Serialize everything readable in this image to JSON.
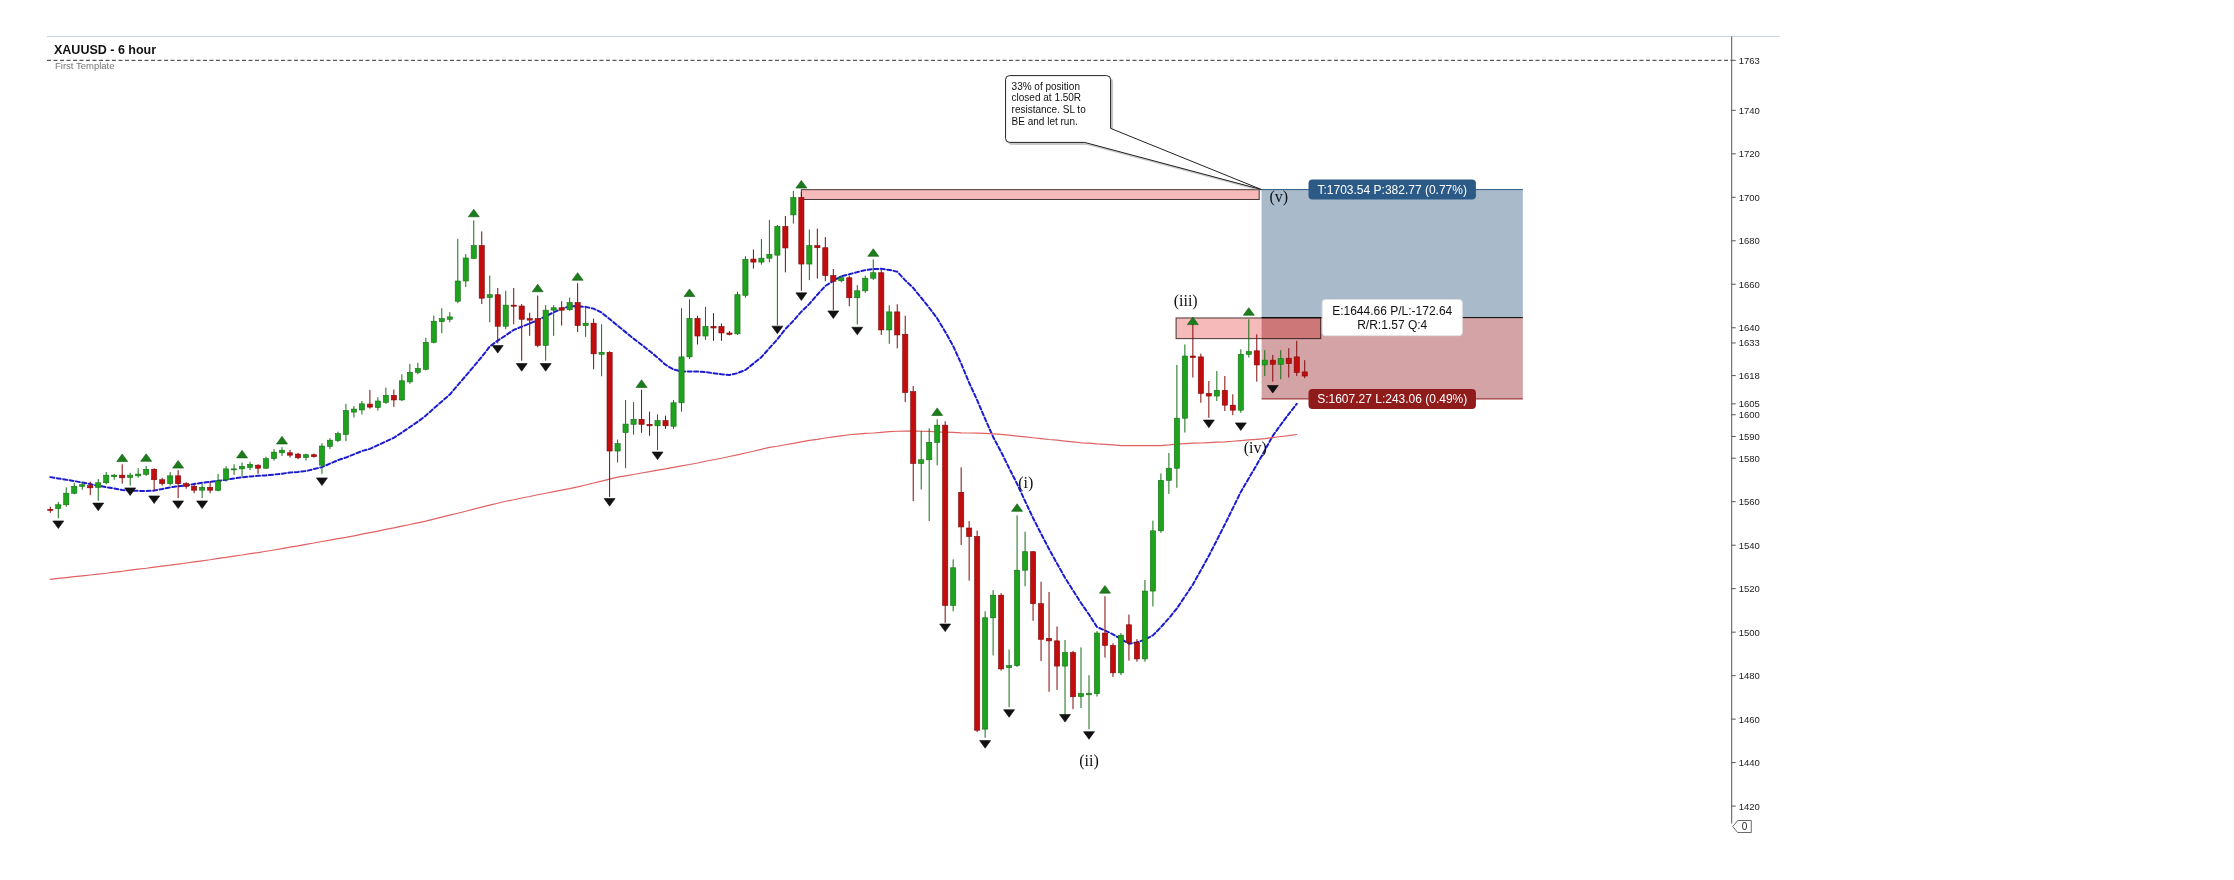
{
  "chart_data": {
    "type": "candlestick",
    "title": "XAUUSD - 6 hour",
    "subtitle": "First Template",
    "categories": [
      null,
      null,
      null,
      null,
      null,
      null,
      null,
      null,
      null,
      null,
      null,
      null,
      null,
      null,
      null,
      null,
      null,
      null,
      null,
      null,
      null,
      null,
      null,
      null,
      null,
      null,
      null,
      null,
      null,
      null,
      null,
      null,
      null,
      null,
      null,
      null,
      null,
      null,
      null,
      null,
      null,
      null,
      null,
      null,
      null,
      null,
      null,
      null,
      null,
      null,
      null,
      null,
      null,
      null,
      null,
      null,
      null,
      null,
      null,
      null,
      null,
      null,
      null,
      null,
      null,
      null,
      null,
      null,
      null,
      null,
      null,
      null,
      null,
      null,
      null,
      null,
      null,
      null,
      null,
      null,
      null,
      null,
      null,
      null,
      null,
      null,
      null,
      null,
      null,
      null,
      null,
      null,
      null,
      null,
      null,
      null,
      null,
      null,
      null,
      null,
      null,
      null,
      null,
      null,
      null,
      null,
      null,
      null,
      null,
      null,
      null,
      null,
      null,
      null,
      null,
      null,
      null,
      null,
      null,
      null,
      null,
      null,
      null,
      null,
      null,
      null,
      null,
      null,
      null,
      null,
      null,
      null,
      null,
      null,
      null,
      null,
      null,
      null,
      null,
      null,
      null,
      null,
      null,
      null,
      null,
      null,
      null,
      null,
      null,
      null,
      null,
      null,
      null,
      null,
      null,
      null,
      null,
      null,
      null,
      null,
      null,
      null,
      null,
      null,
      null,
      null,
      null,
      null,
      null,
      null,
      null,
      null,
      null,
      null,
      null,
      null,
      null,
      null,
      null,
      null,
      null,
      null,
      null,
      null,
      null,
      null,
      null,
      null,
      null,
      null,
      null,
      null,
      null,
      null,
      null,
      null,
      null,
      null,
      null,
      null,
      null,
      null,
      null,
      null,
      null,
      null,
      null,
      null,
      null,
      null,
      null
    ],
    "ohlc": [
      [
        1556.5,
        1557.7,
        1554.9,
        1556.0
      ],
      [
        1556.9,
        1559.9,
        1552.4,
        1558.6
      ],
      [
        1558.6,
        1566.6,
        1557.7,
        1563.9
      ],
      [
        1563.9,
        1568.7,
        1563.4,
        1567.1
      ],
      [
        1567.1,
        1568.7,
        1565.5,
        1567.8
      ],
      [
        1567.4,
        1569.2,
        1563.0,
        1566.4
      ],
      [
        1566.6,
        1570.4,
        1560.4,
        1568.7
      ],
      [
        1568.7,
        1573.6,
        1568.0,
        1572.2
      ],
      [
        1571.5,
        1572.8,
        1570.1,
        1572.2
      ],
      [
        1572.2,
        1577.2,
        1568.3,
        1571.0
      ],
      [
        1571.2,
        1573.3,
        1567.4,
        1572.2
      ],
      [
        1571.9,
        1575.4,
        1571.0,
        1572.7
      ],
      [
        1572.6,
        1576.4,
        1571.9,
        1574.9
      ],
      [
        1574.9,
        1575.4,
        1565.2,
        1570.1
      ],
      [
        1570.1,
        1571.0,
        1567.4,
        1568.3
      ],
      [
        1568.3,
        1573.6,
        1567.4,
        1571.9
      ],
      [
        1571.9,
        1574.5,
        1561.6,
        1568.3
      ],
      [
        1568.3,
        1569.0,
        1566.0,
        1567.1
      ],
      [
        1567.1,
        1568.0,
        1563.9,
        1565.3
      ],
      [
        1565.3,
        1568.3,
        1561.6,
        1566.6
      ],
      [
        1566.6,
        1569.2,
        1563.9,
        1565.3
      ],
      [
        1565.2,
        1572.8,
        1564.8,
        1569.6
      ],
      [
        1570.1,
        1576.3,
        1569.2,
        1575.1
      ],
      [
        1574.7,
        1577.2,
        1572.2,
        1575.1
      ],
      [
        1575.1,
        1578.0,
        1571.5,
        1576.3
      ],
      [
        1575.7,
        1578.4,
        1574.5,
        1577.2
      ],
      [
        1576.8,
        1577.2,
        1572.8,
        1575.4
      ],
      [
        1575.4,
        1580.7,
        1575.1,
        1579.8
      ],
      [
        1579.8,
        1584.2,
        1578.9,
        1582.8
      ],
      [
        1582.5,
        1585.1,
        1581.0,
        1583.7
      ],
      [
        1582.5,
        1583.9,
        1580.3,
        1581.4
      ],
      [
        1581.9,
        1582.5,
        1579.5,
        1580.2
      ],
      [
        1580.3,
        1582.1,
        1578.9,
        1581.6
      ],
      [
        1581.6,
        1582.1,
        1580.3,
        1580.7
      ],
      [
        1576.8,
        1586.9,
        1572.8,
        1585.6
      ],
      [
        1585.4,
        1589.2,
        1584.2,
        1588.3
      ],
      [
        1588.1,
        1592.2,
        1587.4,
        1591.3
      ],
      [
        1590.9,
        1605.0,
        1587.8,
        1601.9
      ],
      [
        1601.2,
        1604.0,
        1598.7,
        1602.6
      ],
      [
        1602.2,
        1606.3,
        1600.1,
        1605.0
      ],
      [
        1604.9,
        1611.4,
        1602.8,
        1603.5
      ],
      [
        1603.3,
        1608.0,
        1601.9,
        1606.3
      ],
      [
        1605.7,
        1612.5,
        1605.0,
        1608.9
      ],
      [
        1608.9,
        1611.6,
        1603.6,
        1606.8
      ],
      [
        1606.8,
        1618.6,
        1606.3,
        1615.6
      ],
      [
        1615.1,
        1623.4,
        1614.2,
        1619.5
      ],
      [
        1619.5,
        1623.9,
        1618.6,
        1621.3
      ],
      [
        1620.9,
        1635.4,
        1620.4,
        1633.3
      ],
      [
        1633.3,
        1645.6,
        1632.8,
        1643.0
      ],
      [
        1642.8,
        1649.0,
        1637.5,
        1644.2
      ],
      [
        1643.9,
        1647.2,
        1642.5,
        1645.0
      ],
      [
        1652.2,
        1680.9,
        1651.3,
        1661.5
      ],
      [
        1661.5,
        1673.9,
        1658.7,
        1672.1
      ],
      [
        1671.9,
        1689.4,
        1671.6,
        1677.8
      ],
      [
        1677.8,
        1684.3,
        1650.9,
        1653.6
      ],
      [
        1653.9,
        1664.0,
        1642.5,
        1655.2
      ],
      [
        1655.2,
        1658.3,
        1632.8,
        1640.7
      ],
      [
        1640.7,
        1657.0,
        1639.3,
        1650.4
      ],
      [
        1650.4,
        1658.3,
        1641.6,
        1649.9
      ],
      [
        1650.0,
        1650.9,
        1624.8,
        1643.9
      ],
      [
        1644.2,
        1646.9,
        1636.3,
        1643.5
      ],
      [
        1644.2,
        1654.8,
        1631.0,
        1631.9
      ],
      [
        1631.9,
        1650.4,
        1624.8,
        1648.1
      ],
      [
        1648.1,
        1650.4,
        1636.3,
        1649.2
      ],
      [
        1649.2,
        1652.2,
        1641.0,
        1648.1
      ],
      [
        1648.3,
        1653.9,
        1647.8,
        1651.6
      ],
      [
        1651.6,
        1660.5,
        1638.0,
        1641.0
      ],
      [
        1641.0,
        1649.5,
        1635.8,
        1642.1
      ],
      [
        1642.1,
        1644.2,
        1620.9,
        1628.0
      ],
      [
        1627.8,
        1641.6,
        1617.7,
        1628.7
      ],
      [
        1628.7,
        1629.2,
        1562.2,
        1583.3
      ],
      [
        1583.3,
        1588.6,
        1578.0,
        1586.7
      ],
      [
        1591.8,
        1606.8,
        1575.4,
        1595.7
      ],
      [
        1595.6,
        1605.8,
        1590.8,
        1597.9
      ],
      [
        1597.9,
        1611.5,
        1591.7,
        1595.6
      ],
      [
        1595.6,
        1601.4,
        1590.3,
        1594.9
      ],
      [
        1594.9,
        1600.2,
        1583.7,
        1597.3
      ],
      [
        1597.3,
        1599.6,
        1593.5,
        1594.9
      ],
      [
        1594.7,
        1606.7,
        1593.5,
        1605.5
      ],
      [
        1605.5,
        1649.0,
        1601.4,
        1626.6
      ],
      [
        1626.6,
        1653.1,
        1625.6,
        1644.3
      ],
      [
        1644.3,
        1645.5,
        1632.3,
        1636.2
      ],
      [
        1636.2,
        1649.6,
        1634.4,
        1640.6
      ],
      [
        1640.6,
        1646.7,
        1634.0,
        1639.9
      ],
      [
        1640.6,
        1642.0,
        1634.0,
        1637.6
      ],
      [
        1637.6,
        1638.5,
        1636.5,
        1636.9
      ],
      [
        1637.2,
        1656.6,
        1636.7,
        1655.2
      ],
      [
        1654.9,
        1672.9,
        1653.8,
        1671.5
      ],
      [
        1671.6,
        1676.0,
        1667.2,
        1670.2
      ],
      [
        1670.2,
        1680.8,
        1669.0,
        1672.0
      ],
      [
        1672.0,
        1689.6,
        1670.2,
        1673.8
      ],
      [
        1673.4,
        1687.3,
        1641.1,
        1686.6
      ],
      [
        1686.6,
        1691.4,
        1665.5,
        1676.7
      ],
      [
        1691.9,
        1702.9,
        1687.9,
        1699.9
      ],
      [
        1699.9,
        1702.5,
        1657.0,
        1669.3
      ],
      [
        1669.3,
        1685.2,
        1661.9,
        1677.8
      ],
      [
        1677.8,
        1685.6,
        1662.6,
        1676.8
      ],
      [
        1676.8,
        1681.7,
        1661.4,
        1664.0
      ],
      [
        1664.0,
        1667.0,
        1648.2,
        1661.4
      ],
      [
        1661.6,
        1664.0,
        1660.9,
        1663.0
      ],
      [
        1663.0,
        1664.0,
        1649.9,
        1653.8
      ],
      [
        1653.8,
        1659.6,
        1641.5,
        1657.0
      ],
      [
        1657.0,
        1664.0,
        1656.1,
        1662.8
      ],
      [
        1662.8,
        1671.5,
        1662.0,
        1665.3
      ],
      [
        1665.3,
        1666.7,
        1636.7,
        1639.0
      ],
      [
        1639.0,
        1650.3,
        1632.6,
        1647.3
      ],
      [
        1647.3,
        1650.8,
        1630.5,
        1636.7
      ],
      [
        1637.0,
        1645.5,
        1605.8,
        1610.2
      ],
      [
        1610.6,
        1613.2,
        1560.3,
        1577.6
      ],
      [
        1577.6,
        1592.6,
        1565.6,
        1579.3
      ],
      [
        1579.3,
        1593.8,
        1551.1,
        1587.3
      ],
      [
        1587.3,
        1597.9,
        1576.7,
        1595.2
      ],
      [
        1595.2,
        1597.0,
        1504.3,
        1512.3
      ],
      [
        1512.3,
        1533.5,
        1509.6,
        1529.6
      ],
      [
        1564.3,
        1575.8,
        1540.1,
        1548.4
      ],
      [
        1547.9,
        1551.1,
        1523.7,
        1544.0
      ],
      [
        1544.0,
        1546.7,
        1454.0,
        1454.9
      ],
      [
        1455.4,
        1509.6,
        1451.4,
        1506.6
      ],
      [
        1506.6,
        1519.3,
        1489.3,
        1517.0
      ],
      [
        1517.0,
        1517.9,
        1482.3,
        1483.1
      ],
      [
        1483.7,
        1492.0,
        1465.5,
        1484.6
      ],
      [
        1484.6,
        1553.7,
        1484.0,
        1528.5
      ],
      [
        1528.5,
        1546.2,
        1521.1,
        1537.0
      ],
      [
        1537.0,
        1537.3,
        1505.2,
        1513.1
      ],
      [
        1513.1,
        1523.2,
        1486.7,
        1496.7
      ],
      [
        1497.1,
        1518.5,
        1472.6,
        1496.0
      ],
      [
        1496.0,
        1502.6,
        1473.4,
        1484.4
      ],
      [
        1484.4,
        1496.4,
        1462.0,
        1490.6
      ],
      [
        1490.6,
        1491.4,
        1464.6,
        1470.3
      ],
      [
        1470.4,
        1493.0,
        1465.1,
        1471.7
      ],
      [
        1471.2,
        1480.2,
        1455.3,
        1471.9
      ],
      [
        1471.7,
        1500.5,
        1470.4,
        1499.6
      ],
      [
        1499.6,
        1516.5,
        1488.3,
        1493.9
      ],
      [
        1493.9,
        1494.9,
        1479.4,
        1481.3
      ],
      [
        1481.3,
        1499.6,
        1480.2,
        1498.6
      ],
      [
        1503.4,
        1508.1,
        1486.9,
        1495.2
      ],
      [
        1495.2,
        1496.8,
        1486.4,
        1487.7
      ],
      [
        1487.7,
        1524.0,
        1486.4,
        1518.9
      ],
      [
        1518.9,
        1551.3,
        1511.8,
        1546.6
      ],
      [
        1546.6,
        1573.0,
        1545.7,
        1569.8
      ],
      [
        1569.8,
        1582.4,
        1563.6,
        1575.4
      ],
      [
        1575.4,
        1622.9,
        1566.4,
        1598.4
      ],
      [
        1598.4,
        1632.3,
        1591.8,
        1627.0
      ],
      [
        1627.0,
        1641.7,
        1617.1,
        1626.3
      ],
      [
        1626.6,
        1628.1,
        1605.5,
        1609.8
      ],
      [
        1609.8,
        1615.5,
        1598.6,
        1608.6
      ],
      [
        1608.6,
        1620.1,
        1606.3,
        1611.2
      ],
      [
        1611.2,
        1617.8,
        1601.7,
        1604.4
      ],
      [
        1604.4,
        1609.4,
        1599.8,
        1602.1
      ],
      [
        1602.1,
        1630.1,
        1600.9,
        1627.8
      ],
      [
        1627.8,
        1643.9,
        1626.3,
        1629.0
      ],
      [
        1629.4,
        1637.0,
        1615.2,
        1622.9
      ],
      [
        1622.9,
        1629.7,
        1617.8,
        1625.1
      ],
      [
        1625.1,
        1627.5,
        1615.2,
        1623.2
      ],
      [
        1623.2,
        1629.7,
        1616.3,
        1625.8
      ],
      [
        1626.0,
        1630.6,
        1617.1,
        1623.5
      ],
      [
        1626.6,
        1634.0,
        1617.8,
        1619.4
      ],
      [
        1619.7,
        1625.1,
        1616.8,
        1617.8
      ],
      null,
      null,
      null,
      null,
      null,
      null,
      null,
      null,
      null,
      null,
      null,
      null,
      null,
      null,
      null,
      null,
      null,
      null,
      null,
      null,
      null,
      null,
      null,
      null,
      null,
      null,
      null,
      null,
      null,
      null,
      null,
      null,
      null,
      null,
      null,
      null,
      null,
      null,
      null,
      null,
      null,
      null,
      null,
      null,
      null,
      null,
      null,
      null,
      null,
      null,
      null,
      null,
      null
    ],
    "colors": [
      "#c10d0d",
      "#1fa31f",
      "#1fa31f",
      "#1fa31f",
      "#1fa31f",
      "#c10d0d",
      "#1fa31f",
      "#1fa31f",
      "#1fa31f",
      "#c10d0d",
      "#1fa31f",
      "#1fa31f",
      "#1fa31f",
      "#c10d0d",
      "#c10d0d",
      "#1fa31f",
      "#c10d0d",
      "#c10d0d",
      "#c10d0d",
      "#1fa31f",
      "#c10d0d",
      "#1fa31f",
      "#1fa31f",
      "#1fa31f",
      "#1fa31f",
      "#1fa31f",
      "#c10d0d",
      "#1fa31f",
      "#1fa31f",
      "#1fa31f",
      "#c10d0d",
      "#c10d0d",
      "#1fa31f",
      "#c10d0d",
      "#1fa31f",
      "#1fa31f",
      "#1fa31f",
      "#1fa31f",
      "#1fa31f",
      "#1fa31f",
      "#c10d0d",
      "#1fa31f",
      "#1fa31f",
      "#c10d0d",
      "#1fa31f",
      "#1fa31f",
      "#1fa31f",
      "#1fa31f",
      "#1fa31f",
      "#1fa31f",
      "#1fa31f",
      "#1fa31f",
      "#1fa31f",
      "#1fa31f",
      "#c10d0d",
      "#1fa31f",
      "#c10d0d",
      "#1fa31f",
      "#c10d0d",
      "#c10d0d",
      "#c10d0d",
      "#c10d0d",
      "#1fa31f",
      "#1fa31f",
      "#c10d0d",
      "#1fa31f",
      "#c10d0d",
      "#1fa31f",
      "#c10d0d",
      "#1fa31f",
      "#c10d0d",
      "#1fa31f",
      "#1fa31f",
      "#1fa31f",
      "#c10d0d",
      "#c10d0d",
      "#1fa31f",
      "#c10d0d",
      "#1fa31f",
      "#1fa31f",
      "#1fa31f",
      "#c10d0d",
      "#1fa31f",
      "#c10d0d",
      "#c10d0d",
      "#c10d0d",
      "#1fa31f",
      "#1fa31f",
      "#c10d0d",
      "#1fa31f",
      "#1fa31f",
      "#1fa31f",
      "#c10d0d",
      "#1fa31f",
      "#c10d0d",
      "#1fa31f",
      "#c10d0d",
      "#c10d0d",
      "#c10d0d",
      "#1fa31f",
      "#c10d0d",
      "#1fa31f",
      "#1fa31f",
      "#1fa31f",
      "#c10d0d",
      "#1fa31f",
      "#c10d0d",
      "#c10d0d",
      "#c10d0d",
      "#1fa31f",
      "#1fa31f",
      "#1fa31f",
      "#c10d0d",
      "#1fa31f",
      "#c10d0d",
      "#c10d0d",
      "#c10d0d",
      "#1fa31f",
      "#1fa31f",
      "#c10d0d",
      "#1fa31f",
      "#1fa31f",
      "#1fa31f",
      "#c10d0d",
      "#c10d0d",
      "#c10d0d",
      "#c10d0d",
      "#1fa31f",
      "#c10d0d",
      "#1fa31f",
      "#1fa31f",
      "#1fa31f",
      "#c10d0d",
      "#c10d0d",
      "#1fa31f",
      "#c10d0d",
      "#c10d0d",
      "#1fa31f",
      "#1fa31f",
      "#1fa31f",
      "#1fa31f",
      "#1fa31f",
      "#1fa31f",
      "#c10d0d",
      "#c10d0d",
      "#c10d0d",
      "#1fa31f",
      "#c10d0d",
      "#c10d0d",
      "#1fa31f",
      "#1fa31f",
      "#c10d0d",
      "#1fa31f",
      "#c10d0d",
      "#1fa31f",
      "#c10d0d",
      "#c10d0d",
      "#c10d0d",
      null,
      null,
      null,
      null,
      null,
      null,
      null,
      null,
      null,
      null,
      null,
      null,
      null,
      null,
      null,
      null,
      null,
      null,
      null,
      null,
      null,
      null,
      null,
      null,
      null,
      null,
      null,
      null,
      null,
      null,
      null,
      null,
      null,
      null,
      null,
      null,
      null,
      null,
      null,
      null,
      null,
      null,
      null,
      null,
      null,
      null,
      null,
      null,
      null,
      null,
      null,
      null,
      null
    ],
    "series": [
      {
        "type": "line",
        "color": "#1c1ccf",
        "line_style": "dashed",
        "values": [
          1571.3,
          1570.7,
          1570.1,
          1569.5,
          1568.8,
          1568.1,
          1567.3,
          1566.7,
          1566.1,
          1565.4,
          1565.1,
          1565.0,
          1564.9,
          1565.1,
          1565.8,
          1566.6,
          1567.1,
          1567.5,
          1568.1,
          1568.7,
          1569.1,
          1569.6,
          1570.1,
          1570.7,
          1571.2,
          1571.6,
          1571.9,
          1572.1,
          1572.5,
          1572.9,
          1573.4,
          1573.7,
          1574.1,
          1575.0,
          1575.9,
          1577.5,
          1579.1,
          1580.3,
          1581.8,
          1583.3,
          1584.3,
          1586.0,
          1587.7,
          1589.4,
          1591.8,
          1594.3,
          1596.8,
          1599.6,
          1602.9,
          1606.1,
          1609.3,
          1613.6,
          1617.9,
          1622.2,
          1626.6,
          1631.4,
          1634.1,
          1636.5,
          1639.0,
          1640.5,
          1642.0,
          1643.5,
          1645.3,
          1647.1,
          1648.7,
          1649.9,
          1649.9,
          1649.6,
          1648.8,
          1647.0,
          1644.0,
          1641.0,
          1638.0,
          1635.0,
          1632.2,
          1629.3,
          1626.3,
          1623.0,
          1620.8,
          1619.9,
          1619.9,
          1619.9,
          1619.6,
          1619.1,
          1618.6,
          1618.3,
          1619.1,
          1620.6,
          1623.5,
          1626.5,
          1630.6,
          1634.7,
          1639.4,
          1643.2,
          1647.4,
          1651.0,
          1655.2,
          1659.2,
          1661.6,
          1663.7,
          1664.6,
          1665.6,
          1666.5,
          1667.0,
          1667.1,
          1666.6,
          1665.8,
          1661.8,
          1658.3,
          1653.8,
          1649.2,
          1644.3,
          1638.2,
          1631.6,
          1623.5,
          1614.7,
          1606.7,
          1598.1,
          1589.8,
          1582.9,
          1575.5,
          1568.2,
          1560.3,
          1552.5,
          1545.3,
          1538.2,
          1531.6,
          1525.0,
          1519.2,
          1513.4,
          1508.1,
          1502.4,
          1500.8,
          1499.0,
          1496.9,
          1494.7,
          1495.3,
          1496.6,
          1498.5,
          1502.3,
          1506.4,
          1510.9,
          1516.4,
          1521.9,
          1528.5,
          1535.1,
          1542.3,
          1549.5,
          1557.0,
          1564.5,
          1570.8,
          1577.0,
          1583.6,
          1590.3,
          1595.4,
          1600.3,
          1605.0,
          null,
          null,
          null,
          null,
          null,
          null,
          null,
          null,
          null,
          null,
          null,
          null,
          null,
          null,
          null,
          null,
          null,
          null,
          null,
          null,
          null,
          null,
          null,
          null,
          null,
          null,
          null,
          null,
          null,
          null,
          null,
          null,
          null,
          null,
          null,
          null,
          null,
          null,
          null,
          null,
          null,
          null,
          null,
          null,
          null,
          null,
          null,
          null,
          null,
          null,
          null,
          null,
          null,
          null
        ]
      },
      {
        "type": "line",
        "color": "#e06262",
        "values": [
          1524.3,
          1524.7,
          1525.1,
          1525.5,
          1525.9,
          1526.3,
          1526.7,
          1527.1,
          1527.6,
          1528.0,
          1528.5,
          1529.0,
          1529.4,
          1529.9,
          1530.4,
          1530.8,
          1531.3,
          1531.8,
          1532.3,
          1532.8,
          1533.3,
          1533.9,
          1534.4,
          1535.0,
          1535.5,
          1536.1,
          1536.6,
          1537.2,
          1537.8,
          1538.4,
          1539.1,
          1539.7,
          1540.4,
          1541.0,
          1541.7,
          1542.3,
          1543.0,
          1543.6,
          1544.3,
          1545.1,
          1545.8,
          1546.5,
          1547.3,
          1548.0,
          1548.8,
          1549.5,
          1550.3,
          1551.1,
          1552.0,
          1552.9,
          1553.8,
          1554.7,
          1555.6,
          1556.6,
          1557.5,
          1558.4,
          1559.3,
          1560.2,
          1560.9,
          1561.7,
          1562.4,
          1563.2,
          1563.9,
          1564.6,
          1565.3,
          1566.0,
          1566.8,
          1567.7,
          1568.6,
          1569.5,
          1570.4,
          1571.3,
          1571.9,
          1572.5,
          1573.2,
          1573.8,
          1574.5,
          1575.1,
          1575.8,
          1576.5,
          1577.1,
          1577.8,
          1578.6,
          1579.3,
          1580.0,
          1580.8,
          1581.5,
          1582.4,
          1583.2,
          1584.1,
          1585.0,
          1585.5,
          1586.2,
          1586.8,
          1587.5,
          1588.2,
          1588.7,
          1589.3,
          1589.8,
          1590.3,
          1590.8,
          1591.1,
          1591.4,
          1591.6,
          1591.9,
          1592.2,
          1592.4,
          1592.5,
          1592.6,
          1592.4,
          1592.3,
          1592.1,
          1592.0,
          1591.9,
          1591.7,
          1591.6,
          1591.5,
          1591.4,
          1591.2,
          1591.0,
          1590.6,
          1590.2,
          1589.8,
          1589.4,
          1589.0,
          1588.6,
          1588.3,
          1587.9,
          1587.5,
          1587.1,
          1586.9,
          1586.6,
          1586.4,
          1586.1,
          1585.8,
          1585.8,
          1585.8,
          1585.8,
          1585.8,
          1585.8,
          1586.1,
          1586.5,
          1586.7,
          1586.9,
          1587.0,
          1587.2,
          1587.4,
          1587.5,
          1587.8,
          1588.1,
          1588.4,
          1588.7,
          1589.0,
          1589.5,
          1590.0,
          1590.4,
          1590.9,
          null,
          null,
          null,
          null,
          null,
          null,
          null,
          null,
          null,
          null,
          null,
          null,
          null,
          null,
          null,
          null,
          null,
          null,
          null,
          null,
          null,
          null,
          null,
          null,
          null,
          null,
          null,
          null,
          null,
          null,
          null,
          null,
          null,
          null,
          null,
          null,
          null,
          null,
          null,
          null,
          null,
          null,
          null,
          null,
          null,
          null,
          null,
          null,
          null,
          null,
          null,
          null,
          null,
          null
        ]
      },
      {
        "type": "scatter",
        "marker": "triangle",
        "color": "#1b7d1b",
        "values": [
          null,
          null,
          null,
          null,
          null,
          null,
          null,
          null,
          null,
          1580.2,
          null,
          null,
          1580.3,
          null,
          null,
          null,
          1577.2,
          null,
          null,
          null,
          null,
          null,
          null,
          null,
          1581.9,
          null,
          null,
          null,
          null,
          1588.3,
          null,
          null,
          null,
          null,
          null,
          null,
          null,
          null,
          null,
          null,
          null,
          null,
          null,
          null,
          null,
          null,
          null,
          null,
          null,
          null,
          null,
          null,
          null,
          1692.8,
          null,
          null,
          null,
          null,
          null,
          null,
          null,
          1658.3,
          null,
          null,
          null,
          null,
          1663.6,
          null,
          null,
          null,
          null,
          null,
          null,
          null,
          1614.3,
          null,
          null,
          null,
          null,
          null,
          1656.1,
          null,
          null,
          null,
          null,
          null,
          null,
          null,
          null,
          null,
          null,
          null,
          null,
          null,
          1706.0,
          null,
          null,
          null,
          null,
          null,
          null,
          null,
          null,
          1674.6,
          null,
          null,
          null,
          null,
          null,
          null,
          null,
          1601.4,
          null,
          null,
          null,
          null,
          null,
          null,
          null,
          null,
          null,
          1557.3,
          null,
          null,
          null,
          null,
          null,
          null,
          null,
          null,
          null,
          null,
          1519.7,
          null,
          null,
          null,
          null,
          null,
          null,
          null,
          null,
          null,
          null,
          1643.2,
          null,
          null,
          null,
          null,
          null,
          null,
          1647.5,
          null,
          null,
          null,
          null,
          null,
          null,
          null,
          null,
          null,
          null,
          null,
          null,
          null,
          null,
          null,
          null,
          null,
          null,
          null,
          null,
          null,
          null,
          null,
          null,
          null,
          null,
          null,
          null,
          null,
          null,
          null,
          null,
          null,
          null,
          null,
          null,
          null,
          null,
          null,
          null,
          null,
          null,
          null,
          null,
          null,
          null,
          null,
          null,
          null,
          null,
          null,
          null,
          null,
          null,
          null,
          null,
          null,
          null,
          null,
          null
        ]
      },
      {
        "type": "scatter",
        "marker": "triangle",
        "color": "#111111",
        "values": [
          null,
          1549.4,
          null,
          null,
          null,
          null,
          1557.6,
          null,
          null,
          null,
          1564.6,
          null,
          null,
          1560.9,
          null,
          null,
          1558.6,
          null,
          null,
          1558.6,
          null,
          null,
          null,
          null,
          null,
          null,
          null,
          null,
          null,
          null,
          null,
          null,
          null,
          null,
          1569.2,
          null,
          null,
          null,
          null,
          null,
          null,
          null,
          null,
          null,
          null,
          null,
          null,
          null,
          null,
          null,
          null,
          null,
          null,
          null,
          null,
          null,
          1630.1,
          null,
          null,
          1621.8,
          null,
          null,
          1621.8,
          null,
          null,
          null,
          null,
          null,
          null,
          null,
          1559.7,
          null,
          null,
          null,
          null,
          null,
          1581.1,
          null,
          null,
          null,
          null,
          null,
          null,
          null,
          null,
          null,
          null,
          null,
          null,
          null,
          null,
          1639.0,
          null,
          null,
          1654.3,
          null,
          null,
          null,
          1646.0,
          null,
          null,
          1638.5,
          null,
          null,
          null,
          null,
          null,
          null,
          null,
          null,
          null,
          null,
          1502.0,
          null,
          null,
          null,
          null,
          1448.4,
          null,
          null,
          1462.6,
          null,
          null,
          null,
          null,
          null,
          null,
          1460.4,
          null,
          null,
          1452.5,
          null,
          null,
          null,
          null,
          null,
          null,
          null,
          null,
          null,
          null,
          null,
          null,
          null,
          null,
          1595.8,
          null,
          null,
          null,
          1594.5,
          null,
          null,
          null,
          1611.7,
          null,
          null,
          null,
          null,
          null,
          null,
          null,
          null,
          null,
          null,
          null,
          null,
          null,
          null,
          null,
          null,
          null,
          null,
          null,
          null,
          null,
          null,
          null,
          null,
          null,
          null,
          null,
          null,
          null,
          null,
          null,
          null,
          null,
          null,
          null,
          null,
          null,
          null,
          null,
          null,
          null,
          null,
          null,
          null,
          null,
          null,
          null,
          null,
          null,
          null,
          null,
          null,
          null,
          null,
          null,
          null,
          null
        ]
      }
    ],
    "ylim": [
      1412,
      1774
    ],
    "yticks": [
      1420,
      1440,
      1460,
      1480,
      1500,
      1520,
      1540,
      1560,
      1580,
      1590,
      1600,
      1605,
      1618,
      1633,
      1640,
      1660,
      1680,
      1700,
      1720,
      1740,
      1763
    ],
    "tick_labels": "y",
    "bands": [
      {
        "axis": "y",
        "from": 1644.66,
        "to": 1703.54,
        "color": "#a9bacb"
      },
      {
        "axis": "y",
        "from": 1607.27,
        "to": 1644.66,
        "color": "#d4a3a6"
      },
      {
        "axis": "y",
        "from": 1699.0,
        "to": 1703.5,
        "color": "#f7baba"
      },
      {
        "axis": "y",
        "from": 1635.0,
        "to": 1644.5,
        "color": "#f7baba"
      }
    ],
    "ref_lines": [
      {
        "axis": "y",
        "value": 1763,
        "color": "#333333",
        "line_style": "dashed"
      },
      {
        "axis": "y",
        "value": 1703.54,
        "label": "T:1703.54 P:382.77 (0.77%)",
        "color": "#2c5a87"
      },
      {
        "axis": "y",
        "value": 1644.66,
        "label": "E:1644.66 P/L:-172.64 R/R:1.57 Q:4"
      },
      {
        "axis": "y",
        "value": 1607.27,
        "label": "S:1607.27 L:243.06 (0.49%)",
        "color": "#8f1b1b"
      }
    ],
    "annotations": [
      "33% of position closed at 1.50R resistance. SL to BE and let run.",
      "0",
      "(i)",
      "(ii)",
      "(iii)",
      "(iv)",
      "(v)"
    ]
  }
}
